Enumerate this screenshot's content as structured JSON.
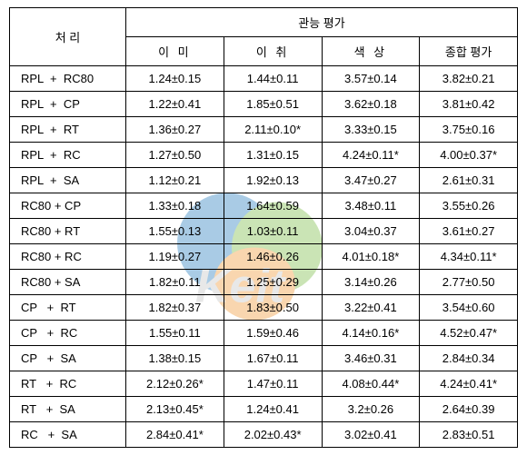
{
  "table": {
    "header": {
      "treatment": "처 리",
      "sensory": "관능 평가",
      "col1": "이 미",
      "col2": "이 취",
      "col3": "색 상",
      "col4": "종합 평가"
    },
    "rows": [
      {
        "treat": "RPL  +  RC80",
        "c1": "1.24±0.15",
        "c2": "1.44±0.11",
        "c3": "3.57±0.14",
        "c4": "3.82±0.21"
      },
      {
        "treat": "RPL  +  CP",
        "c1": "1.22±0.41",
        "c2": "1.85±0.51",
        "c3": "3.62±0.18",
        "c4": "3.81±0.42"
      },
      {
        "treat": "RPL  +  RT",
        "c1": "1.36±0.27",
        "c2": "2.11±0.10*",
        "c3": "3.33±0.15",
        "c4": "3.75±0.16"
      },
      {
        "treat": "RPL  +  RC",
        "c1": "1.27±0.50",
        "c2": "1.31±0.15",
        "c3": "4.24±0.11*",
        "c4": "4.00±0.37*"
      },
      {
        "treat": "RPL  +  SA",
        "c1": "1.12±0.21",
        "c2": "1.92±0.13",
        "c3": "3.47±0.27",
        "c4": "2.61±0.31"
      },
      {
        "treat": "RC80 + CP",
        "c1": "1.33±0.18",
        "c2": "1.64±0.59",
        "c3": "3.48±0.11",
        "c4": "3.55±0.26"
      },
      {
        "treat": "RC80 + RT",
        "c1": "1.55±0.13",
        "c2": "1.03±0.11",
        "c3": "3.04±0.37",
        "c4": "3.61±0.27"
      },
      {
        "treat": "RC80 + RC",
        "c1": "1.19±0.27",
        "c2": "1.46±0.26",
        "c3": "4.01±0.18*",
        "c4": "4.34±0.11*"
      },
      {
        "treat": "RC80 + SA",
        "c1": "1.82±0.11",
        "c2": "1.25±0.29",
        "c3": "3.14±0.26",
        "c4": "2.77±0.50"
      },
      {
        "treat": "CP   +  RT",
        "c1": "1.82±0.37",
        "c2": "1.83±0.50",
        "c3": "3.22±0.41",
        "c4": "3.54±0.60"
      },
      {
        "treat": "CP   +  RC",
        "c1": "1.55±0.11",
        "c2": "1.59±0.46",
        "c3": "4.14±0.16*",
        "c4": "4.52±0.47*"
      },
      {
        "treat": "CP   +  SA",
        "c1": "1.38±0.15",
        "c2": "1.67±0.11",
        "c3": "3.46±0.31",
        "c4": "2.84±0.34"
      },
      {
        "treat": "RT   +  RC",
        "c1": "2.12±0.26*",
        "c2": "1.47±0.11",
        "c3": "4.08±0.44*",
        "c4": "4.24±0.41*"
      },
      {
        "treat": "RT   +  SA",
        "c1": "2.13±0.45*",
        "c2": "1.24±0.41",
        "c3": "3.2±0.26",
        "c4": "2.64±0.39"
      },
      {
        "treat": "RC   +  SA",
        "c1": "2.84±0.41*",
        "c2": "2.02±0.43*",
        "c3": "3.02±0.41",
        "c4": "2.83±0.51"
      }
    ]
  },
  "colors": {
    "border": "#000000",
    "bg": "#ffffff",
    "wm_blue": "#0b6db7",
    "wm_green": "#6ab42d",
    "wm_orange": "#f08b1d",
    "wm_gray": "#bfbfbf"
  }
}
